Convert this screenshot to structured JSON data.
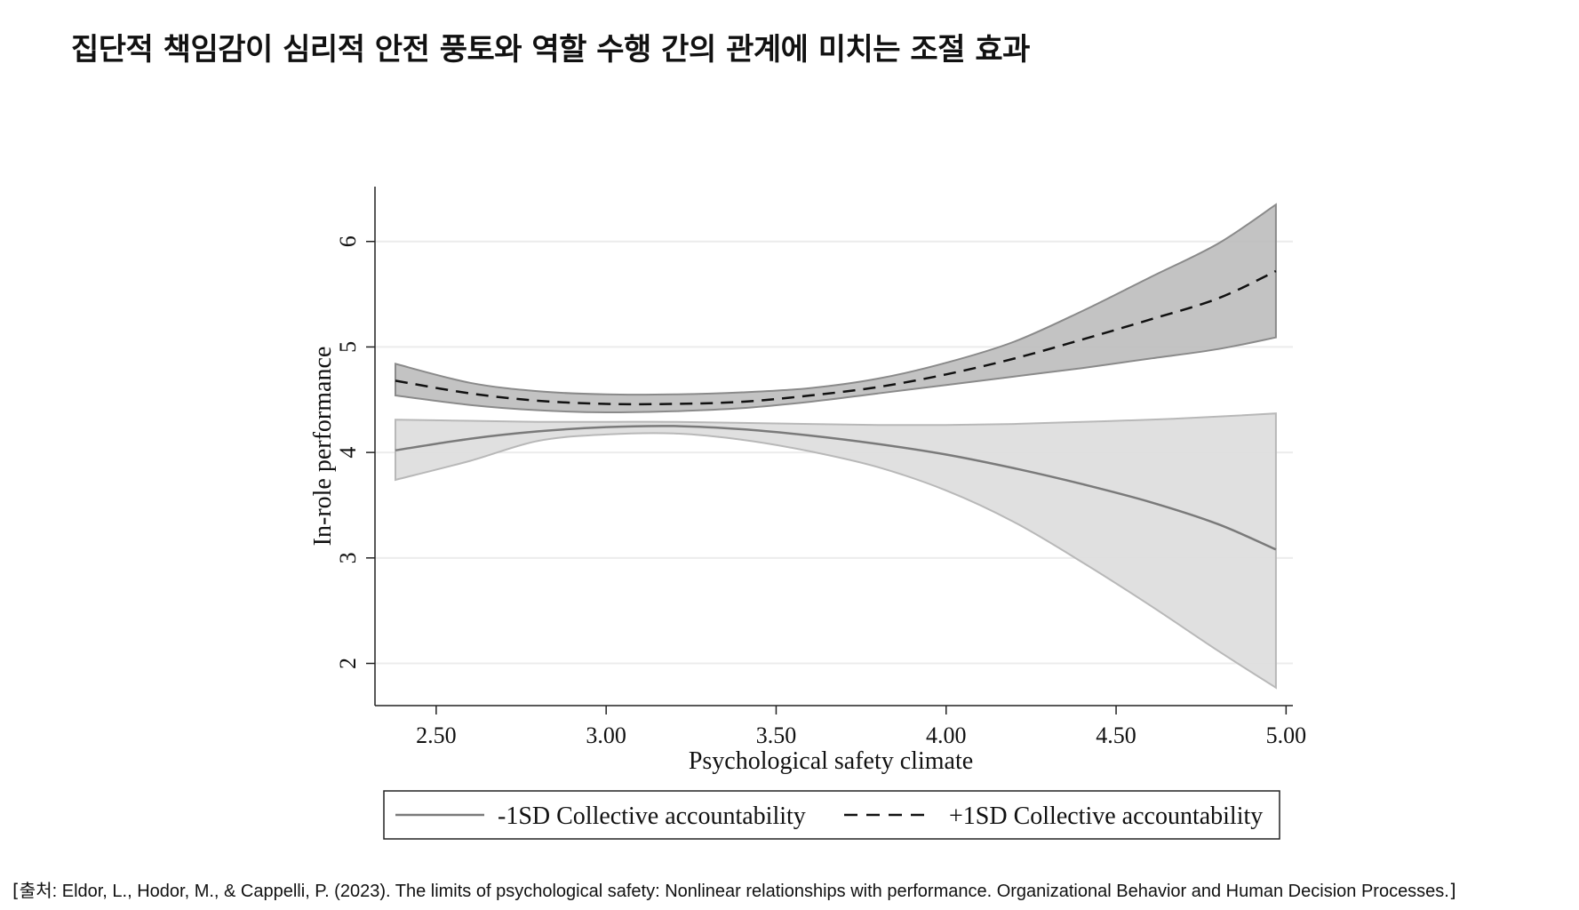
{
  "title": "집단적 책임감이 심리적 안전 풍토와 역할 수행 간의 관계에 미치는 조절 효과",
  "chart_data": {
    "type": "line",
    "xlabel": "Psychological safety climate",
    "ylabel": "In-role performance",
    "xlim": [
      2.32,
      5.02
    ],
    "ylim": [
      1.6,
      6.52
    ],
    "x_ticks": [
      "2.50",
      "3.00",
      "3.50",
      "4.00",
      "4.50",
      "5.00"
    ],
    "y_ticks": [
      "2",
      "3",
      "4",
      "5",
      "6"
    ],
    "grid": true,
    "legend_position": "bottom",
    "x": [
      2.38,
      2.6,
      2.8,
      3.0,
      3.2,
      3.4,
      3.6,
      3.8,
      4.0,
      4.2,
      4.4,
      4.6,
      4.8,
      4.97
    ],
    "series": [
      {
        "name": "-1SD Collective accountability",
        "style": "solid",
        "color": "#7a7a7a",
        "band_color": "#dedede",
        "values": [
          4.02,
          4.13,
          4.2,
          4.24,
          4.25,
          4.22,
          4.16,
          4.08,
          3.98,
          3.85,
          3.7,
          3.53,
          3.32,
          3.08
        ],
        "ci_lower": [
          3.74,
          3.92,
          4.11,
          4.17,
          4.18,
          4.12,
          4.01,
          3.86,
          3.64,
          3.34,
          2.96,
          2.55,
          2.12,
          1.77
        ],
        "ci_upper": [
          4.31,
          4.3,
          4.29,
          4.29,
          4.29,
          4.28,
          4.27,
          4.26,
          4.26,
          4.27,
          4.29,
          4.31,
          4.34,
          4.37
        ]
      },
      {
        "name": "+1SD Collective accountability",
        "style": "dashed",
        "color": "#111111",
        "band_color": "#bdbdbd",
        "values": [
          4.68,
          4.56,
          4.49,
          4.46,
          4.46,
          4.48,
          4.54,
          4.62,
          4.74,
          4.89,
          5.07,
          5.26,
          5.46,
          5.72
        ],
        "ci_lower": [
          4.54,
          4.45,
          4.4,
          4.38,
          4.39,
          4.42,
          4.48,
          4.56,
          4.64,
          4.72,
          4.8,
          4.89,
          4.98,
          5.09
        ],
        "ci_upper": [
          4.84,
          4.66,
          4.58,
          4.55,
          4.55,
          4.57,
          4.61,
          4.7,
          4.85,
          5.05,
          5.34,
          5.66,
          5.98,
          6.35
        ]
      }
    ]
  },
  "citation": {
    "open": "[출처",
    "text": ": Eldor, L., Hodor, M., & Cappelli, P. (2023). The limits of psychological safety: Nonlinear relationships with performance. Organizational Behavior and Human Decision Processes.",
    "close": "]"
  }
}
